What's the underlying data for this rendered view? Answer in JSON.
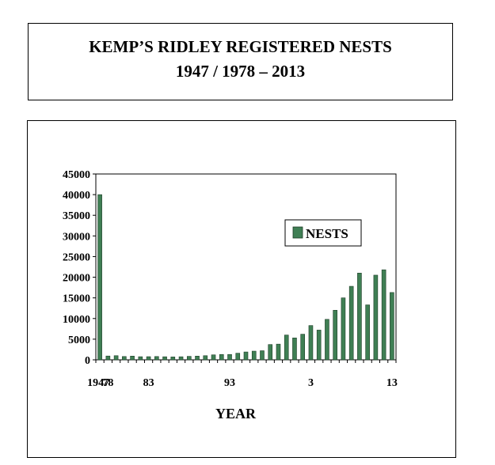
{
  "header": {
    "title_line1": "KEMP’S RIDLEY REGISTERED NESTS",
    "title_line2": "1947 / 1978 – 2013"
  },
  "chart_data": {
    "type": "bar",
    "title": "KEMP’S RIDLEY REGISTERED NESTS 1947 / 1978 – 2013",
    "xlabel": "YEAR",
    "ylabel": "",
    "ylim": [
      0,
      45000
    ],
    "yticks": [
      0,
      5000,
      10000,
      15000,
      20000,
      25000,
      30000,
      35000,
      40000,
      45000
    ],
    "xtick_labels": [
      "1947",
      "78",
      "83",
      "93",
      "3",
      "13"
    ],
    "xtick_categories": [
      "1947",
      "1978",
      "1983",
      "1993",
      "2003",
      "2013"
    ],
    "legend_position": "right",
    "bar_color": "#3f7f54",
    "categories": [
      "1947",
      "1978",
      "1979",
      "1980",
      "1981",
      "1982",
      "1983",
      "1984",
      "1985",
      "1986",
      "1987",
      "1988",
      "1989",
      "1990",
      "1991",
      "1992",
      "1993",
      "1994",
      "1995",
      "1996",
      "1997",
      "1998",
      "1999",
      "2000",
      "2001",
      "2002",
      "2003",
      "2004",
      "2005",
      "2006",
      "2007",
      "2008",
      "2009",
      "2010",
      "2011",
      "2012",
      "2013"
    ],
    "series": [
      {
        "name": "NESTS",
        "values": [
          40000,
          920,
          1000,
          800,
          900,
          750,
          760,
          800,
          740,
          700,
          740,
          840,
          900,
          1000,
          1200,
          1300,
          1300,
          1600,
          1900,
          2100,
          2200,
          3700,
          3800,
          6000,
          5300,
          6200,
          8300,
          7200,
          9800,
          12000,
          15000,
          17800,
          21000,
          13300,
          20500,
          21800,
          16300
        ]
      }
    ]
  }
}
